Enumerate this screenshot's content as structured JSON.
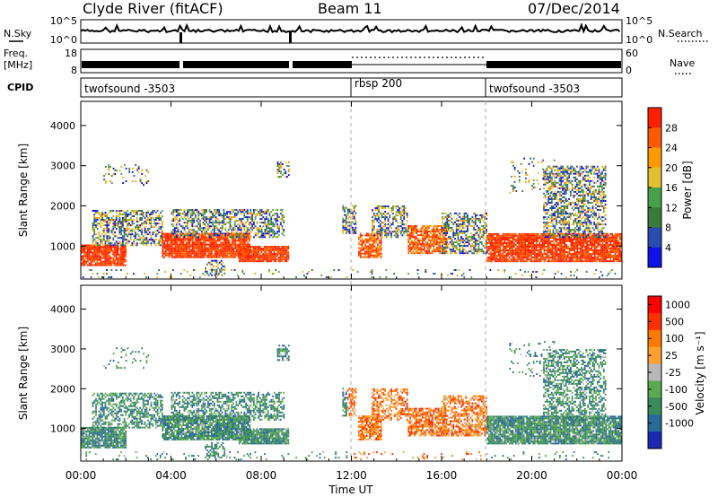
{
  "header": {
    "title": "Clyde River (fitACF)",
    "beam": "Beam 11",
    "date": "07/Dec/2014"
  },
  "strips": {
    "nsky_label": "N.Sky",
    "nsky_ticks": [
      "10^5",
      "10^0"
    ],
    "nsearch_label": "N.Search",
    "nsearch_ticks": [
      "10^5",
      "10^0"
    ],
    "freq_label_1": "Freq.",
    "freq_label_2": "[MHz]",
    "freq_ticks": [
      "18",
      "8"
    ],
    "nave_label": "Nave",
    "nave_ticks": [
      "60",
      "0"
    ],
    "cpid_label": "CPID",
    "cpid_segments": [
      "twofsound -3503",
      "rbsp 200",
      "twofsound -3503"
    ]
  },
  "colors": {
    "power": [
      "#1010e8",
      "#2a4cb0",
      "#3a7a3a",
      "#4aa04a",
      "#e0c030",
      "#ff9a00",
      "#ff5a00",
      "#ff2000"
    ],
    "velocity": [
      "#1a2ab0",
      "#2a6a9a",
      "#3a8a5a",
      "#5aaa50",
      "#b8b8b8",
      "#ffa030",
      "#ff7a00",
      "#ff3000",
      "#ff0000"
    ]
  },
  "chart_data": [
    {
      "type": "heatmap",
      "name": "Power",
      "colorbar_label": "Power [dB]",
      "colorbar_ticks": [
        "28",
        "24",
        "20",
        "16",
        "12",
        "8",
        "4"
      ],
      "ylabel": "Slant Range [km]",
      "ylim": [
        180,
        4600
      ],
      "y_ticks": [
        1000,
        2000,
        3000,
        4000
      ],
      "xlim": [
        0,
        24
      ],
      "x_tick_labels": [
        "00:00",
        "04:00",
        "08:00",
        "12:00",
        "16:00",
        "20:00",
        "00:00"
      ]
    },
    {
      "type": "heatmap",
      "name": "Velocity",
      "colorbar_label": "Velocity [m s⁻¹]",
      "colorbar_ticks": [
        "1000",
        "500",
        "100",
        "25",
        "-25",
        "-100",
        "-500",
        "-1000"
      ],
      "ylabel": "Slant Range [km]",
      "ylim": [
        180,
        4600
      ],
      "y_ticks": [
        1000,
        2000,
        3000,
        4000
      ],
      "xlim": [
        0,
        24
      ],
      "x_tick_labels": [
        "00:00",
        "04:00",
        "08:00",
        "12:00",
        "16:00",
        "20:00",
        "00:00"
      ],
      "xlabel": "Time UT"
    }
  ]
}
